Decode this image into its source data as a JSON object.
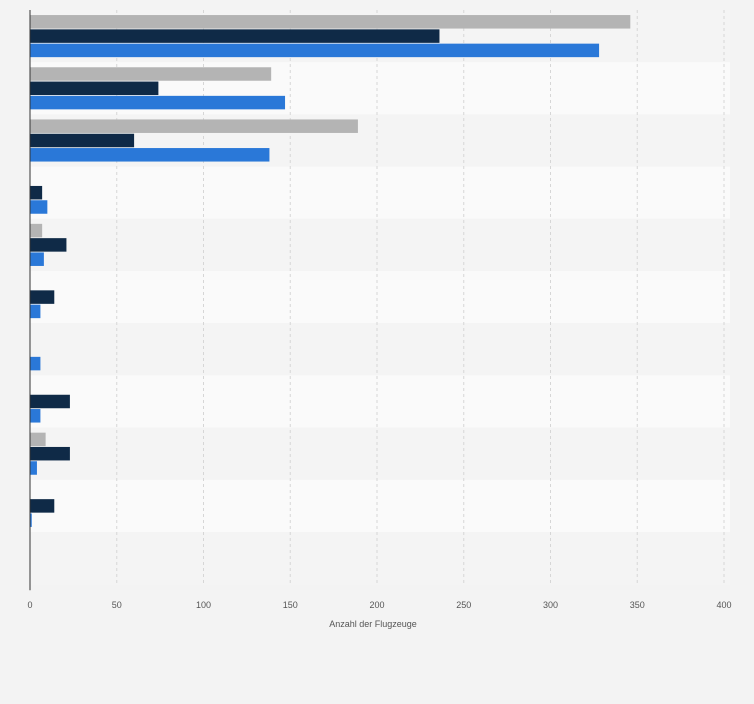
{
  "chart_data": {
    "type": "bar",
    "orientation": "horizontal",
    "title": "",
    "xlabel": "Anzahl der Flugzeuge",
    "ylabel": "",
    "xlim": [
      0,
      400
    ],
    "x_ticks": [
      0,
      50,
      100,
      150,
      200,
      250,
      300,
      350,
      400
    ],
    "grid": "vertical dashed",
    "legend": "none",
    "categories": [
      "",
      "",
      "",
      "",
      "",
      "",
      "",
      "",
      "",
      "",
      ""
    ],
    "series": [
      {
        "color": "#b4b4b4",
        "values": [
          346,
          139,
          189,
          0,
          7,
          0,
          0,
          0,
          9,
          0,
          0
        ]
      },
      {
        "color": "#0f2a47",
        "values": [
          236,
          74,
          60,
          7,
          21,
          14,
          0,
          23,
          23,
          14,
          0
        ]
      },
      {
        "color": "#2a78d8",
        "values": [
          328,
          147,
          138,
          10,
          8,
          6,
          6,
          6,
          4,
          1,
          0
        ]
      }
    ]
  }
}
